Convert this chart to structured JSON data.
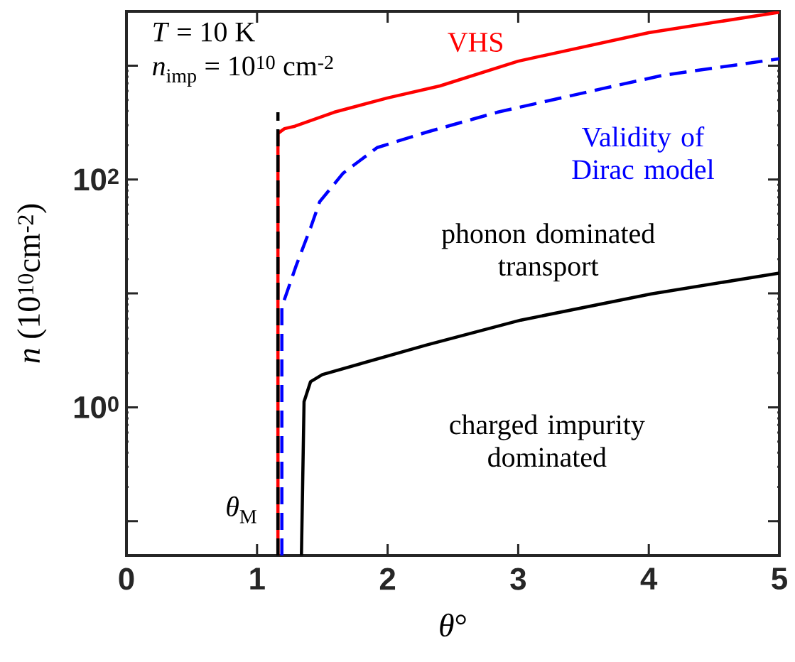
{
  "chart_data": {
    "type": "line",
    "xlabel": "*θ*°",
    "ylabel": "*n* (10$^{10}$cm$^{-2}$)",
    "log": "y",
    "xlim": [
      0,
      5
    ],
    "ylim": [
      0.05,
      3000
    ],
    "xticks": [
      0,
      1,
      2,
      3,
      4,
      5
    ],
    "yticks": [
      {
        "value": 0.1,
        "label": null
      },
      {
        "value": 1,
        "label": "10$^{0}$"
      },
      {
        "value": 10,
        "label": null
      },
      {
        "value": 100,
        "label": "10$^{2}$"
      },
      {
        "value": 1000,
        "label": null
      }
    ],
    "series": [
      {
        "name": "VHS",
        "color": "#ff0000",
        "line_style": "solid",
        "x": [
          1.16,
          1.16,
          1.21,
          1.29,
          1.59,
          2.0,
          2.4,
          3.0,
          4.0,
          5.0
        ],
        "values": [
          0.05,
          254,
          280,
          294,
          390,
          521,
          664,
          1096,
          1950,
          2950
        ]
      },
      {
        "name": "Validity of Dirac model",
        "color": "#0000ff",
        "line_style": "dashed",
        "x": [
          1.19,
          1.19,
          1.3,
          1.41,
          1.48,
          1.66,
          1.92,
          2.3,
          2.84,
          3.66,
          4.11,
          5.0
        ],
        "values": [
          0.05,
          7.6,
          17.6,
          37.7,
          64,
          114,
          191,
          261,
          390,
          635,
          824,
          1150
        ]
      },
      {
        "color": "#000000",
        "line_style": "solid",
        "x": [
          1.34,
          1.36,
          1.41,
          1.5,
          2.3,
          3.02,
          4.02,
          5.0
        ],
        "values": [
          0.05,
          1.12,
          1.68,
          1.94,
          3.53,
          5.83,
          9.9,
          15.1
        ]
      },
      {
        "color": "#000000",
        "line_style": "dashed",
        "x": [
          1.16,
          1.16
        ],
        "values": [
          0.05,
          390
        ]
      }
    ],
    "annotations": [
      "*T* = 10 K",
      "*n*$_{imp}$ = 10$^{10}$ cm$^{-2}$",
      "phonon dominated transport",
      "charged impurity dominated",
      "*θ*$_{M}$"
    ]
  }
}
